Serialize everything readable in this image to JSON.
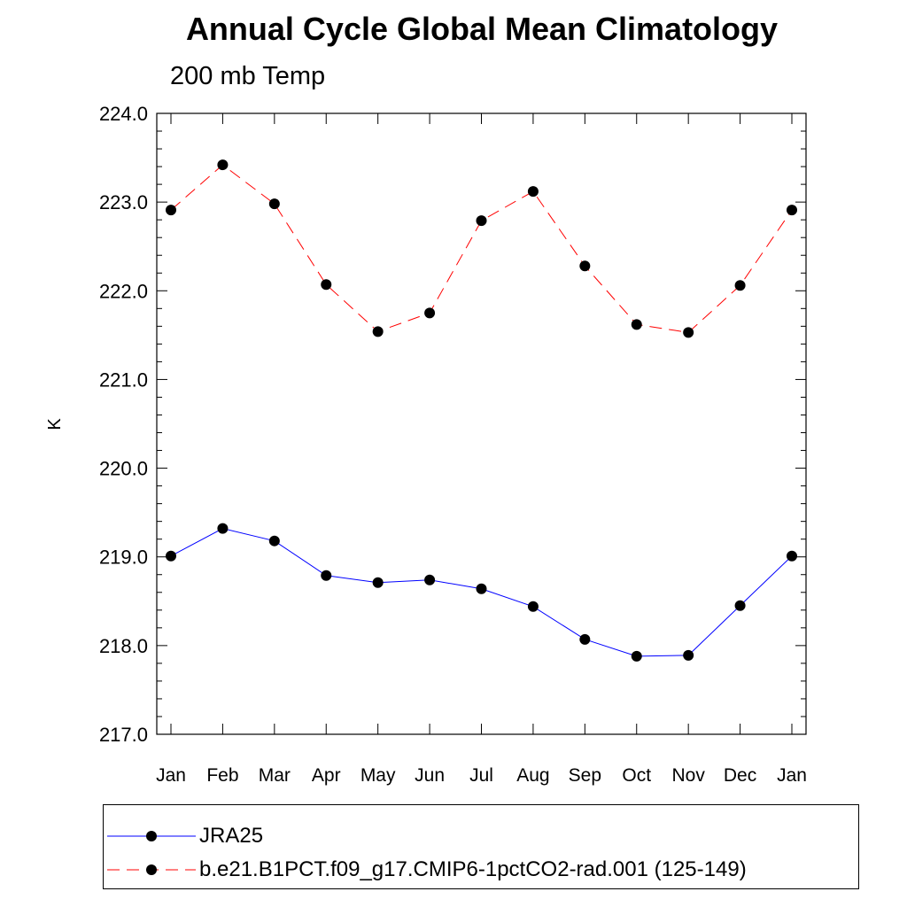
{
  "chart_data": {
    "type": "line",
    "title": "Annual Cycle Global Mean Climatology",
    "subtitle": "200 mb Temp",
    "ylabel": "K",
    "xlabel": "",
    "categories": [
      "Jan",
      "Feb",
      "Mar",
      "Apr",
      "May",
      "Jun",
      "Jul",
      "Aug",
      "Sep",
      "Oct",
      "Nov",
      "Dec",
      "Jan"
    ],
    "ylim": [
      217.0,
      224.0
    ],
    "yticks": [
      "217.0",
      "218.0",
      "219.0",
      "220.0",
      "221.0",
      "222.0",
      "223.0",
      "224.0"
    ],
    "grid": false,
    "legend_position": "bottom",
    "series": [
      {
        "name": "JRA25",
        "color": "#0000ff",
        "dash": "solid",
        "values": [
          219.01,
          219.32,
          219.18,
          218.79,
          218.71,
          218.74,
          218.64,
          218.44,
          218.07,
          217.88,
          217.89,
          218.45,
          219.01
        ]
      },
      {
        "name": "b.e21.B1PCT.f09_g17.CMIP6-1pctCO2-rad.001 (125-149)",
        "color": "#ff0000",
        "dash": "dashed",
        "values": [
          222.91,
          223.42,
          222.98,
          222.07,
          221.54,
          221.75,
          222.79,
          223.12,
          222.28,
          221.62,
          221.53,
          222.06,
          222.91
        ]
      }
    ]
  }
}
